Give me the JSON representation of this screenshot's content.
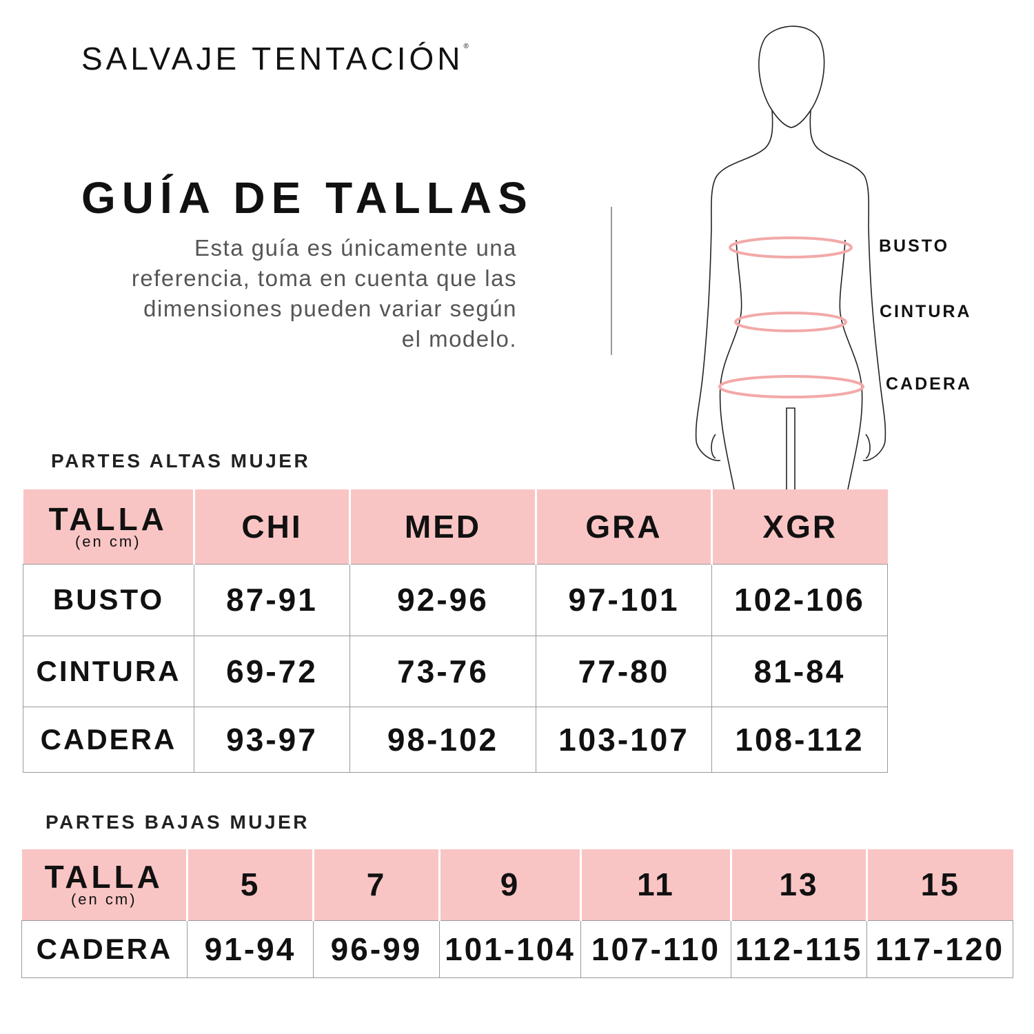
{
  "brand": {
    "name": "SALVAJE TENTACIÓN",
    "mark": "®"
  },
  "title": "GUÍA DE TALLAS",
  "description": [
    "Esta guía es únicamente una",
    "referencia, toma en cuenta que las",
    "dimensiones pueden variar según",
    "el modelo."
  ],
  "figure": {
    "labels": [
      "BUSTO",
      "CINTURA",
      "CADERA"
    ],
    "ring_color": "#f2a9a8"
  },
  "colors": {
    "header_pink": "#f9c5c4",
    "text": "#111111"
  },
  "upper_table": {
    "section_title": "PARTES ALTAS MUJER",
    "header_label": "TALLA",
    "header_unit": "(en cm)",
    "columns": [
      "CHI",
      "MED",
      "GRA",
      "XGR"
    ],
    "rows": [
      {
        "label": "BUSTO",
        "values": [
          "87-91",
          "92-96",
          "97-101",
          "102-106"
        ]
      },
      {
        "label": "CINTURA",
        "values": [
          "69-72",
          "73-76",
          "77-80",
          "81-84"
        ]
      },
      {
        "label": "CADERA",
        "values": [
          "93-97",
          "98-102",
          "103-107",
          "108-112"
        ]
      }
    ]
  },
  "lower_table": {
    "section_title": "PARTES BAJAS MUJER",
    "header_label": "TALLA",
    "header_unit": "(en cm)",
    "columns": [
      "5",
      "7",
      "9",
      "11",
      "13",
      "15"
    ],
    "rows": [
      {
        "label": "CADERA",
        "values": [
          "91-94",
          "96-99",
          "101-104",
          "107-110",
          "112-115",
          "117-120"
        ]
      }
    ]
  }
}
